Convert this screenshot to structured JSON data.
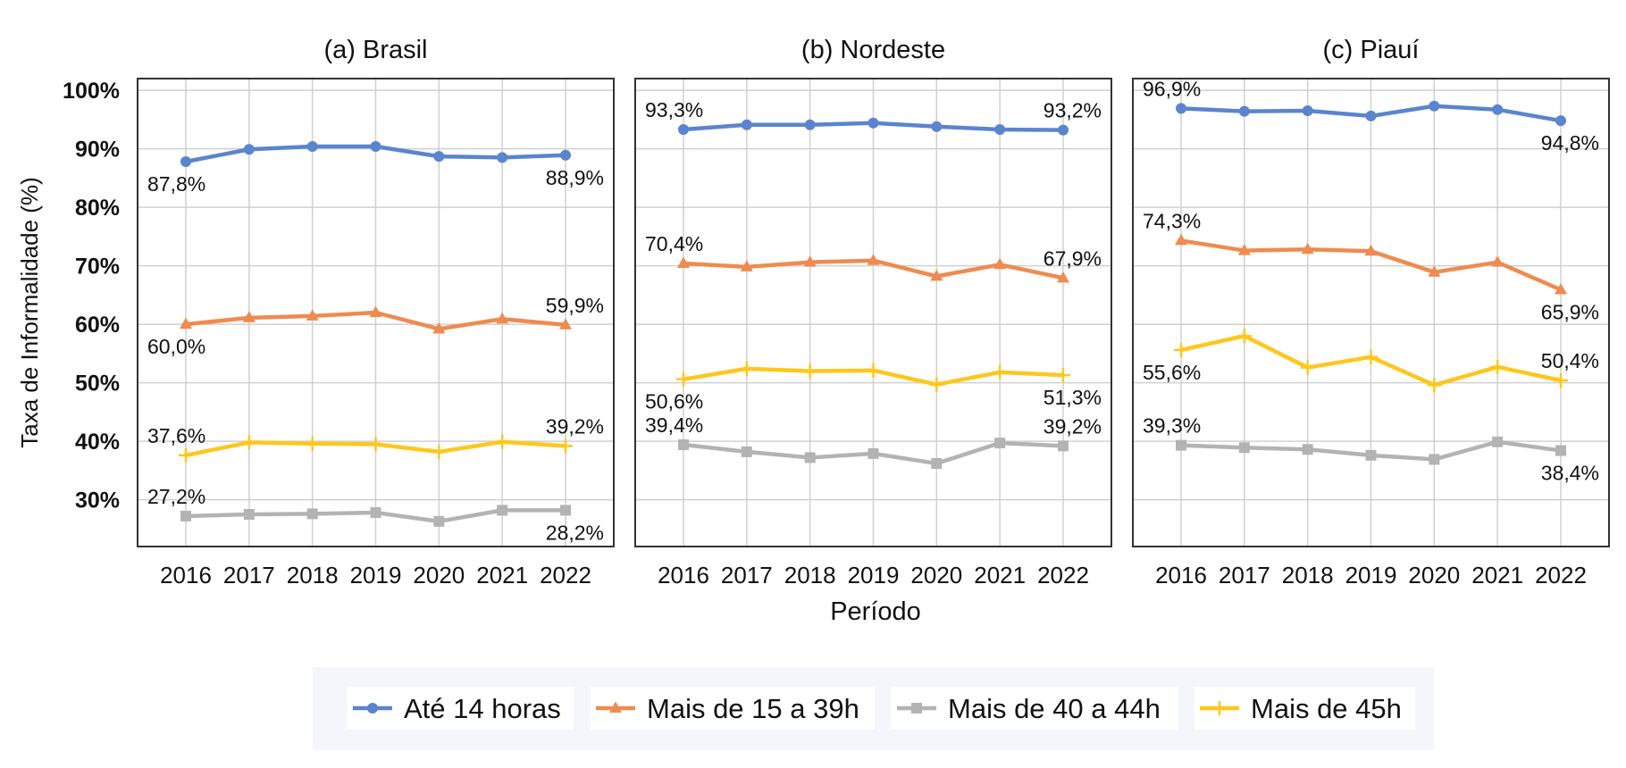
{
  "chart_data": {
    "type": "line",
    "shared": {
      "ylabel": "Taxa de Informalidade (%)",
      "xlabel": "Período",
      "x": [
        "2016",
        "2017",
        "2018",
        "2019",
        "2020",
        "2021",
        "2022"
      ],
      "y_ticks": [
        30,
        40,
        50,
        60,
        70,
        80,
        90,
        100
      ],
      "y_tick_labels": [
        "30%",
        "40%",
        "50%",
        "60%",
        "70%",
        "80%",
        "90%",
        "100%"
      ],
      "ylim": [
        22,
        102
      ],
      "grid": true,
      "legend_position": "bottom"
    },
    "legend": [
      {
        "name": "Até 14 horas",
        "color": "#5b84cf",
        "marker": "circle"
      },
      {
        "name": "Mais de 15 a 39h",
        "color": "#ef8b4f",
        "marker": "triangle"
      },
      {
        "name": "Mais de 40 a 44h",
        "color": "#b3b3b3",
        "marker": "square"
      },
      {
        "name": "Mais de 45h",
        "color": "#fdc71c",
        "marker": "plus"
      }
    ],
    "panels": [
      {
        "title": "(a) Brasil",
        "series": [
          {
            "values": [
              87.8,
              89.9,
              90.4,
              90.4,
              88.7,
              88.5,
              88.9
            ],
            "first_label": "87,8%",
            "last_label": "88,9%"
          },
          {
            "values": [
              60.0,
              61.1,
              61.4,
              62.0,
              59.2,
              60.9,
              59.9
            ],
            "first_label": "60,0%",
            "last_label": "59,9%"
          },
          {
            "values": [
              27.2,
              27.5,
              27.6,
              27.8,
              26.3,
              28.2,
              28.2
            ],
            "first_label": "27,2%",
            "last_label": "28,2%"
          },
          {
            "values": [
              37.6,
              39.8,
              39.6,
              39.5,
              38.2,
              39.9,
              39.2
            ],
            "first_label": "37,6%",
            "last_label": "39,2%"
          }
        ]
      },
      {
        "title": "(b) Nordeste",
        "series": [
          {
            "values": [
              93.3,
              94.1,
              94.1,
              94.4,
              93.8,
              93.3,
              93.2
            ],
            "first_label": "93,3%",
            "last_label": "93,2%"
          },
          {
            "values": [
              70.4,
              69.8,
              70.6,
              70.9,
              68.2,
              70.2,
              67.9
            ],
            "first_label": "70,4%",
            "last_label": "67,9%"
          },
          {
            "values": [
              39.4,
              38.2,
              37.2,
              37.9,
              36.2,
              39.7,
              39.2
            ],
            "first_label": "39,4%",
            "last_label": "39,2%"
          },
          {
            "values": [
              50.6,
              52.4,
              52.0,
              52.1,
              49.7,
              51.8,
              51.3
            ],
            "first_label": "50,6%",
            "last_label": "51,3%"
          }
        ]
      },
      {
        "title": "(c) Piauí",
        "series": [
          {
            "values": [
              96.9,
              96.4,
              96.5,
              95.6,
              97.3,
              96.7,
              94.8
            ],
            "first_label": "96,9%",
            "last_label": "94,8%"
          },
          {
            "values": [
              74.3,
              72.6,
              72.8,
              72.5,
              68.9,
              70.6,
              65.9
            ],
            "first_label": "74,3%",
            "last_label": "65,9%"
          },
          {
            "values": [
              39.3,
              38.9,
              38.6,
              37.6,
              36.9,
              39.9,
              38.4
            ],
            "first_label": "39,3%",
            "last_label": "38,4%"
          },
          {
            "values": [
              55.6,
              58.0,
              52.6,
              54.4,
              49.6,
              52.7,
              50.4
            ],
            "first_label": "55,6%",
            "last_label": "50,4%"
          }
        ]
      }
    ]
  }
}
